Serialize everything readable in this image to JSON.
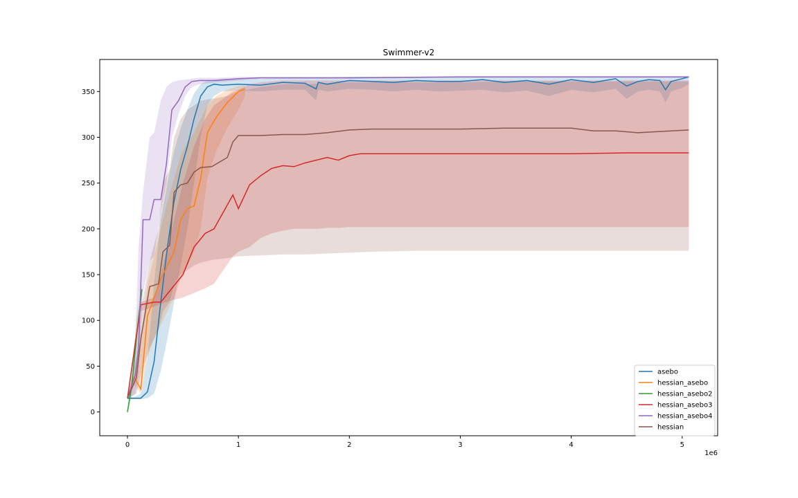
{
  "chart_data": {
    "type": "line",
    "title": "Swimmer-v2",
    "xlabel": "",
    "ylabel": "",
    "x_offset_label": "1e6",
    "xlim": [
      -250000,
      5320000
    ],
    "ylim": [
      -26,
      385
    ],
    "x_ticks": [
      0,
      1000000,
      2000000,
      3000000,
      4000000,
      5000000
    ],
    "x_tick_labels": [
      "0",
      "1",
      "2",
      "3",
      "4",
      "5"
    ],
    "y_ticks": [
      0,
      50,
      100,
      150,
      200,
      250,
      300,
      350
    ],
    "y_tick_labels": [
      "0",
      "50",
      "100",
      "150",
      "200",
      "250",
      "300",
      "350"
    ],
    "grid": false,
    "legend_position": "lower-right",
    "series": [
      {
        "name": "asebo",
        "color": "#1f77b4",
        "x": [
          0,
          60000,
          120000,
          180000,
          240000,
          300000,
          360000,
          420000,
          480000,
          540000,
          600000,
          660000,
          720000,
          780000,
          850000,
          1000000,
          1200000,
          1400000,
          1600000,
          1700000,
          1720000,
          1800000,
          2000000,
          2200000,
          2400000,
          2600000,
          2800000,
          3000000,
          3200000,
          3400000,
          3600000,
          3800000,
          4000000,
          4200000,
          4400000,
          4500000,
          4600000,
          4700000,
          4800000,
          4850000,
          4900000,
          5000000,
          5060000
        ],
        "y": [
          15,
          15,
          15,
          22,
          55,
          120,
          180,
          230,
          265,
          290,
          320,
          345,
          355,
          358,
          357,
          358,
          357,
          360,
          359,
          353,
          360,
          358,
          362,
          361,
          360,
          362,
          361,
          361,
          363,
          360,
          362,
          358,
          363,
          360,
          364,
          356,
          361,
          363,
          362,
          352,
          361,
          364,
          366
        ],
        "band_upper": [
          16,
          16,
          20,
          60,
          140,
          210,
          250,
          285,
          310,
          330,
          348,
          358,
          362,
          363,
          364,
          364,
          364,
          365,
          365,
          365,
          365,
          365,
          366,
          366,
          366,
          366,
          366,
          366,
          366,
          366,
          366,
          366,
          366,
          366,
          366,
          366,
          366,
          366,
          366,
          366,
          366,
          366,
          366
        ],
        "band_lower": [
          14,
          14,
          14,
          15,
          20,
          45,
          80,
          120,
          160,
          200,
          250,
          300,
          335,
          345,
          350,
          351,
          350,
          352,
          352,
          340,
          352,
          350,
          353,
          352,
          350,
          352,
          350,
          351,
          352,
          349,
          351,
          345,
          352,
          349,
          353,
          342,
          350,
          352,
          350,
          338,
          350,
          354,
          358
        ]
      },
      {
        "name": "hessian_asebo",
        "color": "#ff7f0e",
        "x": [
          0,
          60000,
          120000,
          180000,
          240000,
          300000,
          360000,
          420000,
          480000,
          540000,
          600000,
          660000,
          720000,
          800000,
          900000,
          1000000,
          1060000
        ],
        "y": [
          15,
          38,
          25,
          105,
          125,
          145,
          160,
          175,
          210,
          222,
          225,
          255,
          305,
          322,
          338,
          350,
          353
        ],
        "band_upper": [
          16,
          40,
          80,
          140,
          170,
          200,
          230,
          255,
          280,
          295,
          305,
          320,
          335,
          345,
          352,
          356,
          357
        ],
        "band_lower": [
          14,
          30,
          20,
          60,
          80,
          95,
          110,
          125,
          145,
          160,
          175,
          200,
          255,
          285,
          310,
          330,
          345
        ]
      },
      {
        "name": "hessian_asebo2",
        "color": "#2ca02c",
        "x": [
          0,
          40000,
          80000,
          130000
        ],
        "y": [
          0,
          30,
          80,
          134
        ],
        "band_upper": [
          3,
          40,
          100,
          140
        ],
        "band_lower": [
          -3,
          20,
          60,
          125
        ]
      },
      {
        "name": "hessian_asebo3",
        "color": "#d62728",
        "x": [
          0,
          120000,
          240000,
          300000,
          400000,
          500000,
          600000,
          700000,
          780000,
          950000,
          1000000,
          1100000,
          1200000,
          1300000,
          1400000,
          1500000,
          1600000,
          1700000,
          1800000,
          1900000,
          2000000,
          2100000,
          2500000,
          3000000,
          3500000,
          4000000,
          4500000,
          5060000
        ],
        "y": [
          15,
          117,
          120,
          120,
          135,
          150,
          180,
          195,
          200,
          237,
          222,
          248,
          258,
          266,
          269,
          268,
          272,
          275,
          278,
          275,
          280,
          282,
          282,
          282,
          282,
          282,
          283,
          283
        ],
        "band_upper": [
          16,
          120,
          125,
          150,
          200,
          250,
          290,
          320,
          335,
          350,
          352,
          358,
          360,
          361,
          362,
          362,
          362,
          362,
          362,
          362,
          362,
          362,
          362,
          362,
          362,
          362,
          362,
          362
        ],
        "band_lower": [
          14,
          110,
          115,
          118,
          122,
          125,
          130,
          135,
          140,
          170,
          175,
          180,
          190,
          195,
          198,
          200,
          200,
          200,
          201,
          201,
          202,
          202,
          202,
          202,
          202,
          202,
          202,
          202
        ]
      },
      {
        "name": "hessian_asebo4",
        "color": "#9467bd",
        "x": [
          0,
          70000,
          100000,
          140000,
          200000,
          240000,
          300000,
          350000,
          400000,
          460000,
          520000,
          580000,
          650000,
          800000,
          1000000,
          1200000,
          2000000,
          3000000,
          4000000,
          5060000
        ],
        "y": [
          15,
          40,
          70,
          210,
          210,
          232,
          232,
          270,
          330,
          340,
          355,
          361,
          362,
          362,
          364,
          365,
          365,
          366,
          366,
          366
        ],
        "band_upper": [
          16,
          80,
          180,
          240,
          300,
          305,
          340,
          355,
          360,
          362,
          363,
          364,
          365,
          365,
          366,
          366,
          366,
          366,
          366,
          366
        ],
        "band_lower": [
          14,
          20,
          40,
          130,
          165,
          170,
          220,
          250,
          300,
          325,
          345,
          355,
          358,
          360,
          362,
          364,
          364,
          365,
          365,
          365
        ]
      },
      {
        "name": "hessian",
        "color": "#8c564b",
        "x": [
          0,
          80000,
          120000,
          200000,
          280000,
          320000,
          380000,
          420000,
          480000,
          540000,
          600000,
          660000,
          760000,
          900000,
          950000,
          1000000,
          1200000,
          1400000,
          1600000,
          1800000,
          2000000,
          2200000,
          2600000,
          3000000,
          3400000,
          3800000,
          4000000,
          4200000,
          4400000,
          4600000,
          5060000
        ],
        "y": [
          15,
          37,
          80,
          137,
          140,
          175,
          182,
          240,
          248,
          250,
          262,
          267,
          268,
          278,
          295,
          302,
          302,
          303,
          303,
          305,
          308,
          309,
          309,
          309,
          310,
          310,
          310,
          307,
          307,
          305,
          308
        ],
        "band_upper": [
          16,
          60,
          110,
          165,
          200,
          250,
          265,
          300,
          320,
          330,
          335,
          340,
          342,
          345,
          348,
          350,
          355,
          358,
          358,
          359,
          360,
          360,
          360,
          360,
          361,
          361,
          361,
          361,
          361,
          361,
          361
        ],
        "band_lower": [
          14,
          20,
          40,
          70,
          90,
          110,
          120,
          140,
          150,
          155,
          160,
          163,
          166,
          168,
          169,
          170,
          171,
          172,
          172,
          173,
          174,
          175,
          176,
          176,
          176,
          176,
          176,
          176,
          176,
          176,
          176
        ]
      }
    ]
  }
}
